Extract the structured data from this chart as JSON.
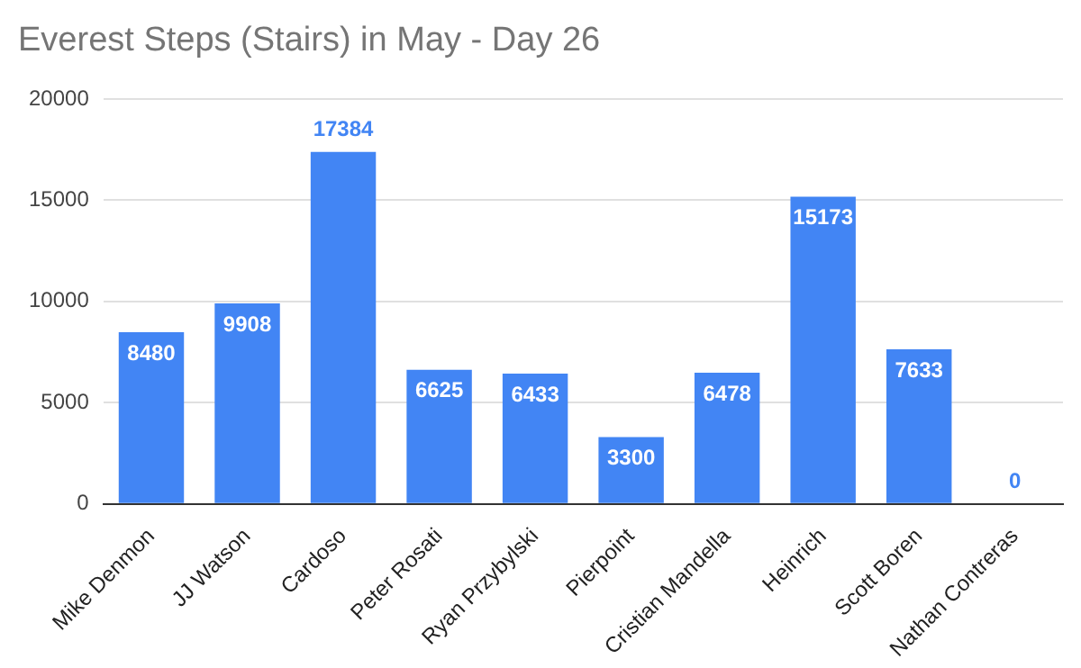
{
  "chart_data": {
    "type": "bar",
    "title": "Everest Steps (Stairs) in May - Day 26",
    "categories": [
      "Mike Denmon",
      "JJ Watson",
      "Cardoso",
      "Peter Rosati",
      "Ryan Przybylski",
      "Pierpoint",
      "Cristian Mandella",
      "Heinrich",
      "Scott Boren",
      "Nathan Contreras"
    ],
    "values": [
      8480,
      9908,
      17384,
      6625,
      6433,
      3300,
      6478,
      15173,
      7633,
      0
    ],
    "color": "#4285f4",
    "ylim": [
      0,
      20000
    ],
    "yticks": [
      0,
      5000,
      10000,
      15000,
      20000
    ],
    "grid": "y",
    "data_labels": true
  }
}
